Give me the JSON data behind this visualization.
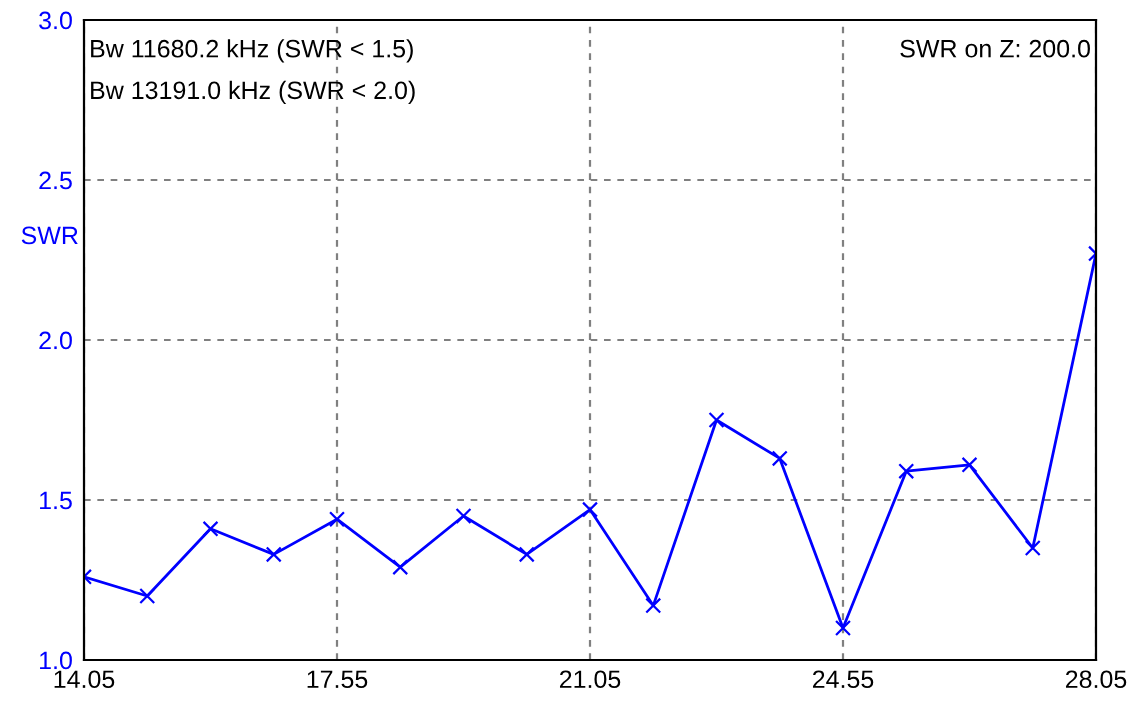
{
  "chart_data": {
    "type": "line",
    "ylabel": "SWR",
    "x": [
      14.05,
      14.925,
      15.8,
      16.675,
      17.55,
      18.425,
      19.3,
      20.175,
      21.05,
      21.925,
      22.8,
      23.675,
      24.55,
      25.425,
      26.3,
      27.175,
      28.05
    ],
    "series": [
      {
        "color": "#0000ff",
        "values": [
          1.26,
          1.2,
          1.41,
          1.33,
          1.44,
          1.29,
          1.45,
          1.33,
          1.47,
          1.17,
          1.75,
          1.63,
          1.1,
          1.59,
          1.61,
          1.35,
          2.27
        ]
      }
    ],
    "xlim": [
      14.05,
      28.05
    ],
    "xticks": [
      {
        "value": 14.05,
        "label": "14.05"
      },
      {
        "value": 17.55,
        "label": "17.55"
      },
      {
        "value": 21.05,
        "label": "21.05"
      },
      {
        "value": 24.55,
        "label": "24.55"
      },
      {
        "value": 28.05,
        "label": "28.05"
      }
    ],
    "ylim": [
      1.0,
      3.0
    ],
    "yticks": [
      {
        "value": 1.0,
        "label": "1.0"
      },
      {
        "value": 1.5,
        "label": "1.5"
      },
      {
        "value": 2.0,
        "label": "2.0"
      },
      {
        "value": 2.5,
        "label": "2.5"
      },
      {
        "value": 3.0,
        "label": "3.0"
      }
    ],
    "grid": true,
    "marker": "cross",
    "line_style": "solid",
    "annotations": [
      "Bw 11680.2 kHz (SWR < 1.5)",
      "Bw 13191.0 kHz (SWR < 2.0)",
      "SWR on Z: 200.0"
    ]
  }
}
